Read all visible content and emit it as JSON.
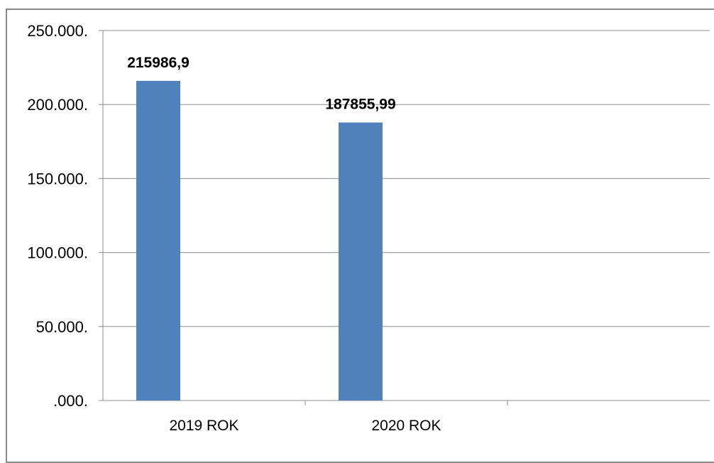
{
  "chart_data": {
    "type": "bar",
    "categories": [
      "2019 ROK",
      "2020 ROK",
      ""
    ],
    "values": [
      215986.9,
      187855.99,
      null
    ],
    "data_labels": [
      "215986,9",
      "187855,99",
      ""
    ],
    "y_ticks": [
      {
        "value": 0,
        "label": ".000."
      },
      {
        "value": 50000,
        "label": "50.000."
      },
      {
        "value": 100000,
        "label": "100.000."
      },
      {
        "value": 150000,
        "label": "150.000."
      },
      {
        "value": 200000,
        "label": "200.000."
      },
      {
        "value": 250000,
        "label": "250.000."
      }
    ],
    "ylim": [
      0,
      250000
    ],
    "grid": true,
    "legend": "none",
    "bar_color": "#4f81bd",
    "grid_color": "#8c8c8c"
  }
}
